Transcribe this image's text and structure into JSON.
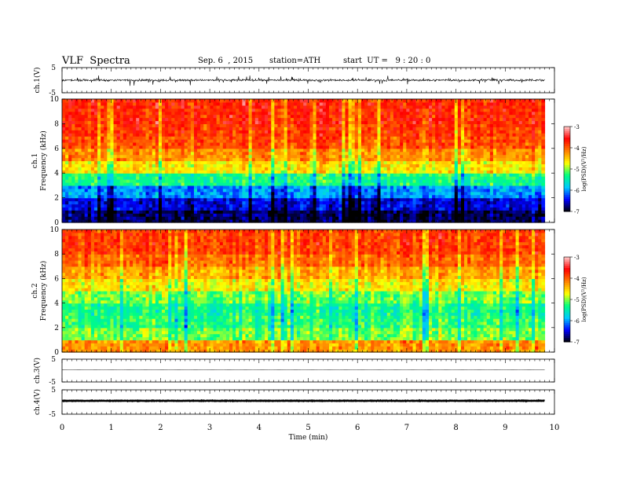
{
  "header": {
    "title": "VLF  Spectra",
    "date": "Sep. 6  , 2015",
    "station": "station=ATH",
    "start": "start  UT =   9 : 20 : 0"
  },
  "chart_data": [
    {
      "type": "line",
      "panel": "ch1-waveform",
      "ylabel": "ch.1(V)",
      "ylim": [
        -5,
        5
      ],
      "yticks": [
        "5",
        "-5"
      ],
      "xlim": [
        0,
        10
      ],
      "baseline": 0,
      "noise_amplitude_typical": 0.6,
      "noise_amplitude_max": 3
    },
    {
      "type": "heatmap",
      "panel": "ch1-spectrogram",
      "ylabel": "ch.1\nFrequency  (kHz)",
      "ylim": [
        0,
        10
      ],
      "yticks": [
        "0",
        "2",
        "4",
        "6",
        "8",
        "10"
      ],
      "xlim": [
        0,
        9.8
      ],
      "colorbar": {
        "label": "log(PSD)(V²/Hz)",
        "range": [
          -7,
          -3
        ],
        "ticks": [
          "-3",
          "-4",
          "-5",
          "-6",
          "-7"
        ]
      },
      "freq_khz": [
        0.5,
        1.5,
        2.5,
        3.5,
        4.5,
        5.5,
        6.5,
        7.5,
        8.5,
        9.5
      ],
      "mean_logpsd": [
        -6.8,
        -6.5,
        -6.0,
        -5.3,
        -4.6,
        -4.2,
        -3.9,
        -3.8,
        -3.7,
        -3.7
      ]
    },
    {
      "type": "heatmap",
      "panel": "ch2-spectrogram",
      "ylabel": "ch.2\nFrequency  (kHz)",
      "ylim": [
        0,
        10
      ],
      "yticks": [
        "0",
        "2",
        "4",
        "6",
        "8",
        "10"
      ],
      "xlim": [
        0,
        9.8
      ],
      "colorbar": {
        "label": "log(PSD)(V²/Hz)",
        "range": [
          -7,
          -3
        ],
        "ticks": [
          "-3",
          "-4",
          "-5",
          "-6",
          "-7"
        ]
      },
      "freq_khz": [
        0.5,
        1.5,
        2.5,
        3.5,
        4.5,
        5.5,
        6.5,
        7.5,
        8.5,
        9.5
      ],
      "mean_logpsd": [
        -4.2,
        -5.0,
        -5.2,
        -5.3,
        -5.0,
        -4.6,
        -4.3,
        -4.0,
        -3.8,
        -3.8
      ]
    },
    {
      "type": "line",
      "panel": "ch3-waveform",
      "ylabel": "ch.3(V)",
      "ylim": [
        -5,
        5
      ],
      "yticks": [
        "5",
        "-5"
      ],
      "xlim": [
        0,
        10
      ],
      "baseline": 0.3,
      "noise_amplitude_typical": 0.05
    },
    {
      "type": "line",
      "panel": "ch4-waveform",
      "ylabel": "ch.4(V)",
      "ylim": [
        -5,
        5
      ],
      "yticks": [
        "5",
        "-5"
      ],
      "xlim": [
        0,
        10
      ],
      "baseline": 0.5,
      "noise_amplitude_typical": 0.15
    }
  ],
  "xaxis": {
    "label": "Time  (min)",
    "ticks": [
      "0",
      "1",
      "2",
      "3",
      "4",
      "5",
      "6",
      "7",
      "8",
      "9",
      "10"
    ],
    "range": [
      0,
      10
    ]
  },
  "colors": {
    "waveform": "#000000",
    "colormap": [
      "#000000",
      "#0000ff",
      "#00c8ff",
      "#00ff80",
      "#ffff00",
      "#ff8000",
      "#ff0000",
      "#ffc8c8"
    ]
  }
}
